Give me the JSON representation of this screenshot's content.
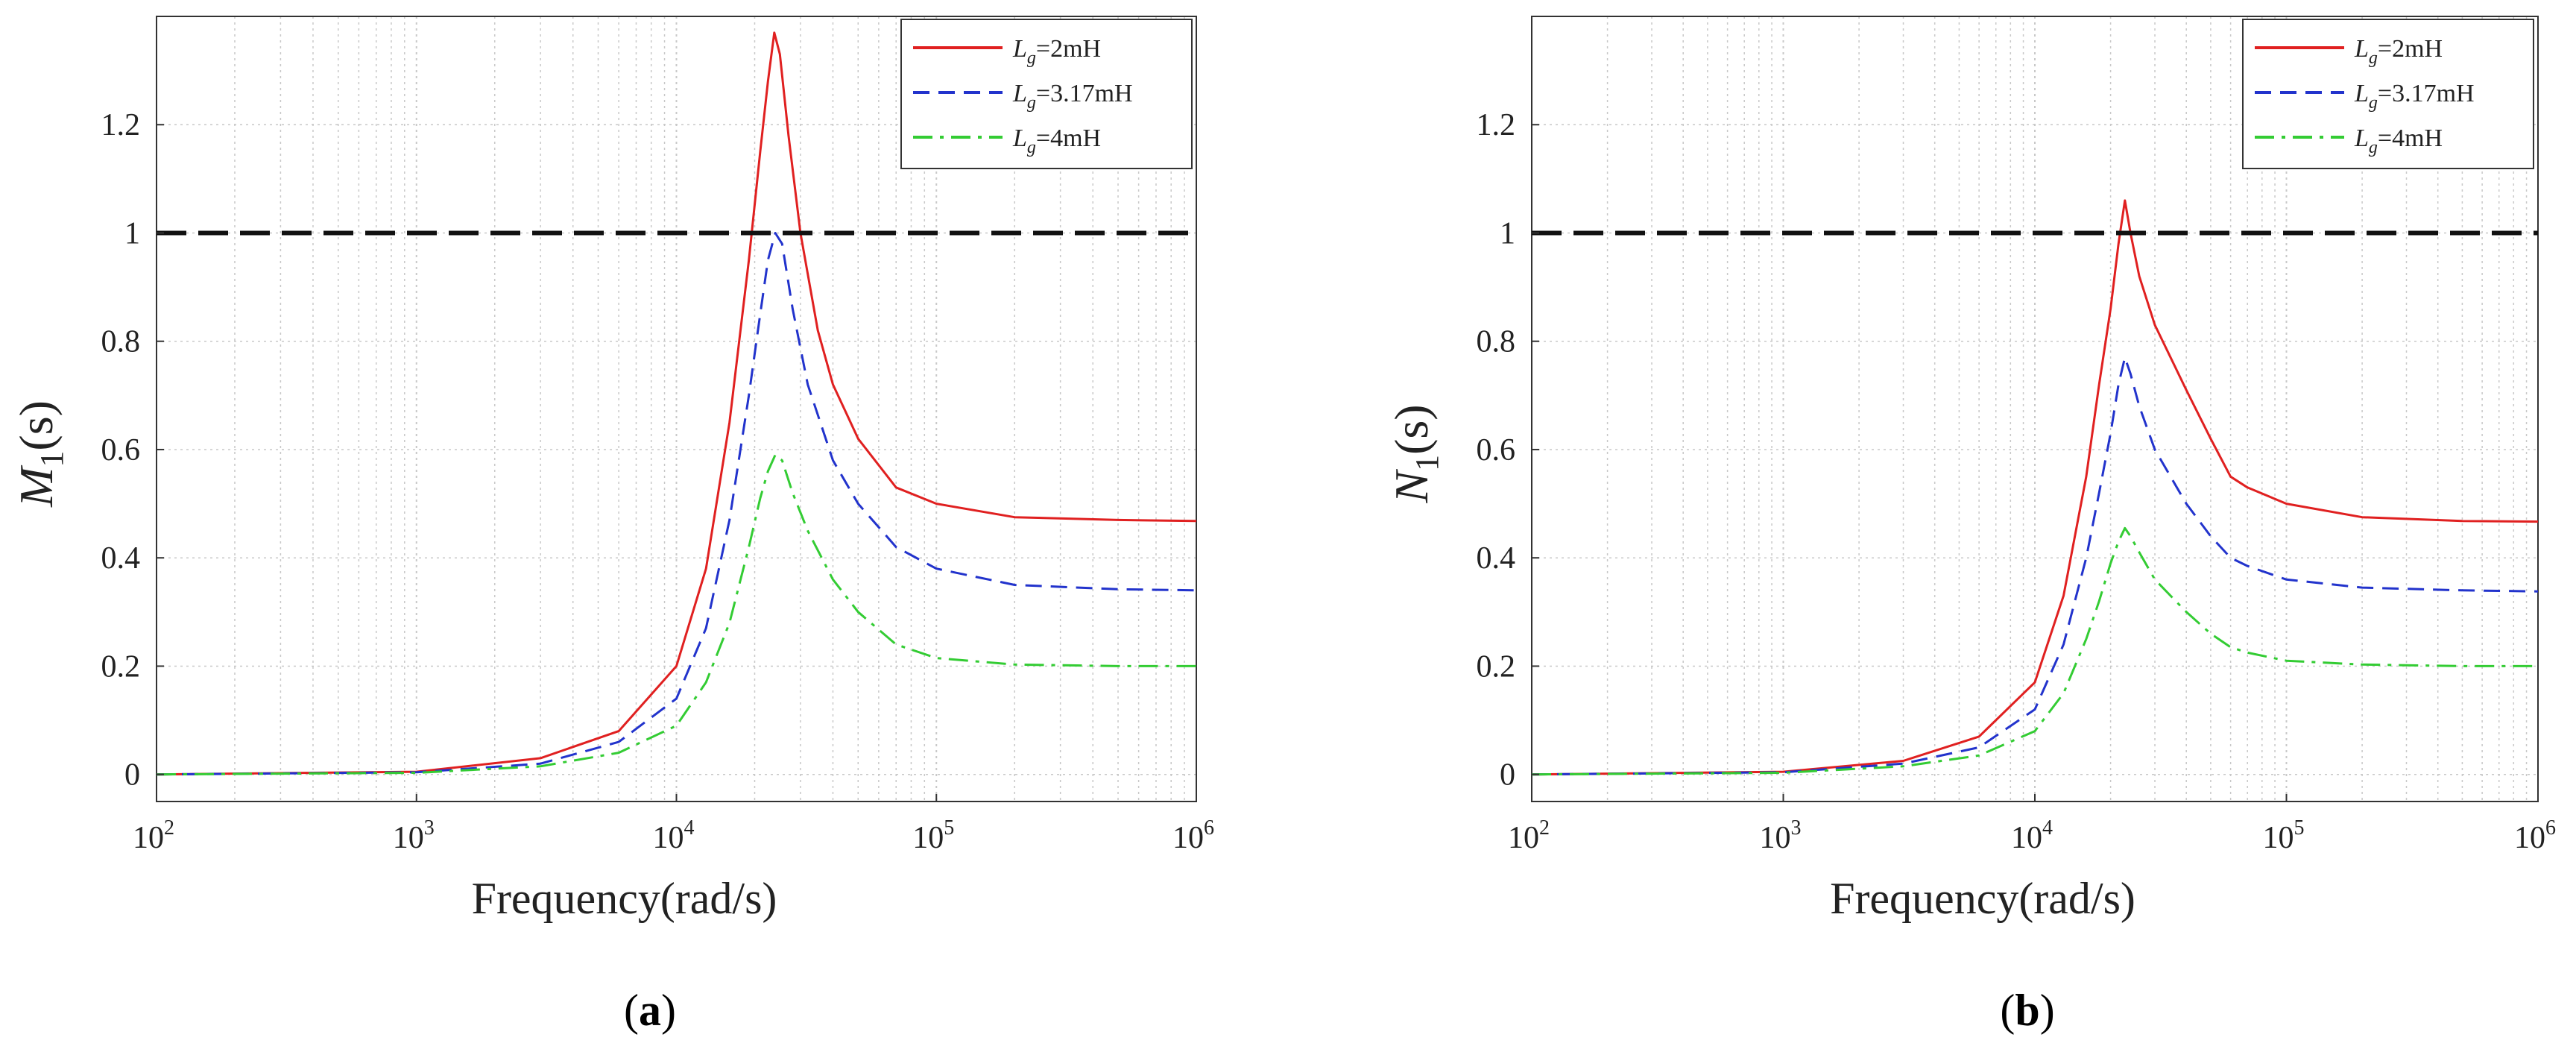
{
  "chart_data": [
    {
      "type": "line",
      "panel": "a",
      "caption_letter": "a",
      "ylabel_main": "M",
      "ylabel_sub": "1",
      "ylabel_arg": "(s)",
      "xlabel": "Frequency(rad/s)",
      "xscale": "log",
      "xlim": [
        100,
        1000000
      ],
      "ylim": [
        -0.05,
        1.4
      ],
      "x_ticks": [
        {
          "base": "10",
          "exp": "2",
          "value": 100
        },
        {
          "base": "10",
          "exp": "3",
          "value": 1000
        },
        {
          "base": "10",
          "exp": "4",
          "value": 10000
        },
        {
          "base": "10",
          "exp": "5",
          "value": 100000
        },
        {
          "base": "10",
          "exp": "6",
          "value": 1000000
        }
      ],
      "y_ticks": [
        {
          "label": "0",
          "value": 0
        },
        {
          "label": "0.2",
          "value": 0.2
        },
        {
          "label": "0.4",
          "value": 0.4
        },
        {
          "label": "0.6",
          "value": 0.6
        },
        {
          "label": "0.8",
          "value": 0.8
        },
        {
          "label": "1",
          "value": 1.0
        },
        {
          "label": "1.2",
          "value": 1.2
        }
      ],
      "grid": true,
      "reference_line": {
        "y": 1.0,
        "color": "#111111"
      },
      "legend_position": "top-right",
      "series": [
        {
          "name": "Lg=2mH",
          "legend_main": "L",
          "legend_sub": "g",
          "legend_rest": "=2mH",
          "color": "#e02020",
          "dash": "solid",
          "points": [
            [
              100,
              0.0
            ],
            [
              1000,
              0.005
            ],
            [
              3000,
              0.03
            ],
            [
              6000,
              0.08
            ],
            [
              10000,
              0.2
            ],
            [
              13000,
              0.38
            ],
            [
              16000,
              0.65
            ],
            [
              19000,
              0.95
            ],
            [
              21000,
              1.15
            ],
            [
              22500,
              1.28
            ],
            [
              23800,
              1.37
            ],
            [
              25000,
              1.33
            ],
            [
              27000,
              1.18
            ],
            [
              30000,
              1.0
            ],
            [
              35000,
              0.82
            ],
            [
              40000,
              0.72
            ],
            [
              50000,
              0.62
            ],
            [
              70000,
              0.53
            ],
            [
              100000,
              0.5
            ],
            [
              200000,
              0.475
            ],
            [
              500000,
              0.47
            ],
            [
              1000000,
              0.468
            ]
          ]
        },
        {
          "name": "Lg=3.17mH",
          "legend_main": "L",
          "legend_sub": "g",
          "legend_rest": "=3.17mH",
          "color": "#2233cc",
          "dash": "dashed",
          "points": [
            [
              100,
              0.0
            ],
            [
              1000,
              0.004
            ],
            [
              3000,
              0.02
            ],
            [
              6000,
              0.06
            ],
            [
              10000,
              0.14
            ],
            [
              13000,
              0.27
            ],
            [
              16000,
              0.47
            ],
            [
              19000,
              0.7
            ],
            [
              21000,
              0.85
            ],
            [
              22500,
              0.95
            ],
            [
              24000,
              1.0
            ],
            [
              25500,
              0.98
            ],
            [
              28000,
              0.86
            ],
            [
              32000,
              0.72
            ],
            [
              40000,
              0.58
            ],
            [
              50000,
              0.5
            ],
            [
              70000,
              0.42
            ],
            [
              100000,
              0.38
            ],
            [
              200000,
              0.35
            ],
            [
              500000,
              0.342
            ],
            [
              1000000,
              0.34
            ]
          ]
        },
        {
          "name": "Lg=4mH",
          "legend_main": "L",
          "legend_sub": "g",
          "legend_rest": "=4mH",
          "color": "#33cc33",
          "dash": "dashdot",
          "points": [
            [
              100,
              0.0
            ],
            [
              1000,
              0.003
            ],
            [
              3000,
              0.015
            ],
            [
              6000,
              0.04
            ],
            [
              10000,
              0.09
            ],
            [
              13000,
              0.17
            ],
            [
              16000,
              0.28
            ],
            [
              19000,
              0.42
            ],
            [
              21000,
              0.51
            ],
            [
              22500,
              0.56
            ],
            [
              24000,
              0.59
            ],
            [
              25500,
              0.58
            ],
            [
              28000,
              0.52
            ],
            [
              32000,
              0.45
            ],
            [
              40000,
              0.36
            ],
            [
              50000,
              0.3
            ],
            [
              70000,
              0.24
            ],
            [
              100000,
              0.215
            ],
            [
              200000,
              0.203
            ],
            [
              500000,
              0.2
            ],
            [
              1000000,
              0.2
            ]
          ]
        }
      ]
    },
    {
      "type": "line",
      "panel": "b",
      "caption_letter": "b",
      "ylabel_main": "N",
      "ylabel_sub": "1",
      "ylabel_arg": "(s)",
      "xlabel": "Frequency(rad/s)",
      "xscale": "log",
      "xlim": [
        100,
        1000000
      ],
      "ylim": [
        -0.05,
        1.4
      ],
      "x_ticks": [
        {
          "base": "10",
          "exp": "2",
          "value": 100
        },
        {
          "base": "10",
          "exp": "3",
          "value": 1000
        },
        {
          "base": "10",
          "exp": "4",
          "value": 10000
        },
        {
          "base": "10",
          "exp": "5",
          "value": 100000
        },
        {
          "base": "10",
          "exp": "6",
          "value": 1000000
        }
      ],
      "y_ticks": [
        {
          "label": "0",
          "value": 0
        },
        {
          "label": "0.2",
          "value": 0.2
        },
        {
          "label": "0.4",
          "value": 0.4
        },
        {
          "label": "0.6",
          "value": 0.6
        },
        {
          "label": "0.8",
          "value": 0.8
        },
        {
          "label": "1",
          "value": 1.0
        },
        {
          "label": "1.2",
          "value": 1.2
        }
      ],
      "grid": true,
      "reference_line": {
        "y": 1.0,
        "color": "#111111"
      },
      "legend_position": "top-right",
      "series": [
        {
          "name": "Lg=2mH",
          "legend_main": "L",
          "legend_sub": "g",
          "legend_rest": "=2mH",
          "color": "#e02020",
          "dash": "solid",
          "points": [
            [
              100,
              0.0
            ],
            [
              1000,
              0.005
            ],
            [
              3000,
              0.025
            ],
            [
              6000,
              0.07
            ],
            [
              10000,
              0.17
            ],
            [
              13000,
              0.33
            ],
            [
              16000,
              0.55
            ],
            [
              18000,
              0.72
            ],
            [
              20000,
              0.86
            ],
            [
              21500,
              0.98
            ],
            [
              22800,
              1.06
            ],
            [
              24000,
              1.0
            ],
            [
              26000,
              0.92
            ],
            [
              30000,
              0.83
            ],
            [
              40000,
              0.71
            ],
            [
              50000,
              0.62
            ],
            [
              60000,
              0.55
            ],
            [
              70000,
              0.53
            ],
            [
              100000,
              0.5
            ],
            [
              200000,
              0.475
            ],
            [
              500000,
              0.468
            ],
            [
              1000000,
              0.467
            ]
          ]
        },
        {
          "name": "Lg=3.17mH",
          "legend_main": "L",
          "legend_sub": "g",
          "legend_rest": "=3.17mH",
          "color": "#2233cc",
          "dash": "dashed",
          "points": [
            [
              100,
              0.0
            ],
            [
              1000,
              0.004
            ],
            [
              3000,
              0.02
            ],
            [
              6000,
              0.05
            ],
            [
              10000,
              0.12
            ],
            [
              13000,
              0.24
            ],
            [
              16000,
              0.4
            ],
            [
              18000,
              0.52
            ],
            [
              20000,
              0.63
            ],
            [
              21500,
              0.72
            ],
            [
              22800,
              0.77
            ],
            [
              24000,
              0.74
            ],
            [
              26000,
              0.68
            ],
            [
              30000,
              0.6
            ],
            [
              40000,
              0.5
            ],
            [
              50000,
              0.44
            ],
            [
              60000,
              0.4
            ],
            [
              70000,
              0.385
            ],
            [
              100000,
              0.36
            ],
            [
              200000,
              0.345
            ],
            [
              500000,
              0.34
            ],
            [
              1000000,
              0.338
            ]
          ]
        },
        {
          "name": "Lg=4mH",
          "legend_main": "L",
          "legend_sub": "g",
          "legend_rest": "=4mH",
          "color": "#33cc33",
          "dash": "dashdot",
          "points": [
            [
              100,
              0.0
            ],
            [
              1000,
              0.003
            ],
            [
              3000,
              0.015
            ],
            [
              6000,
              0.035
            ],
            [
              10000,
              0.08
            ],
            [
              13000,
              0.15
            ],
            [
              16000,
              0.25
            ],
            [
              18000,
              0.32
            ],
            [
              20000,
              0.39
            ],
            [
              21500,
              0.43
            ],
            [
              22800,
              0.455
            ],
            [
              24000,
              0.44
            ],
            [
              26000,
              0.41
            ],
            [
              30000,
              0.36
            ],
            [
              40000,
              0.3
            ],
            [
              50000,
              0.26
            ],
            [
              60000,
              0.235
            ],
            [
              70000,
              0.225
            ],
            [
              100000,
              0.21
            ],
            [
              200000,
              0.203
            ],
            [
              500000,
              0.2
            ],
            [
              1000000,
              0.2
            ]
          ]
        }
      ]
    }
  ]
}
